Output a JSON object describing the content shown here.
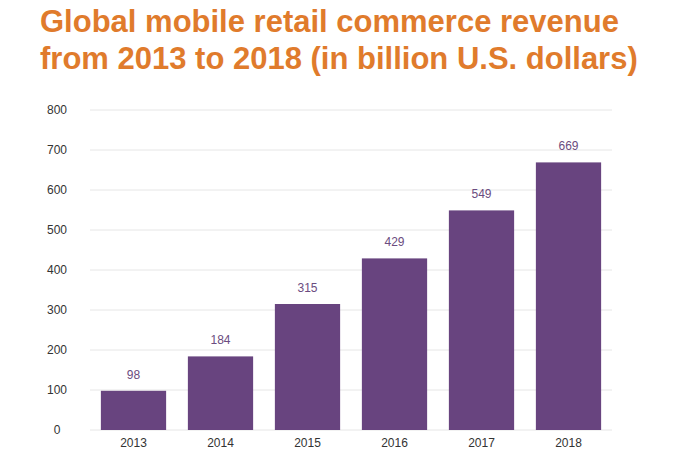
{
  "chart_data": {
    "type": "bar",
    "title": "Global mobile retail commerce revenue from 2013 to 2018 (in billion U.S. dollars)",
    "categories": [
      "2013",
      "2014",
      "2015",
      "2016",
      "2017",
      "2018"
    ],
    "values": [
      98,
      184,
      315,
      429,
      549,
      669
    ],
    "color": "#68447f",
    "ylim": [
      0,
      800
    ],
    "yticks": [
      0,
      100,
      200,
      300,
      400,
      500,
      600,
      700,
      800
    ],
    "grid": true,
    "data_labels": true
  }
}
